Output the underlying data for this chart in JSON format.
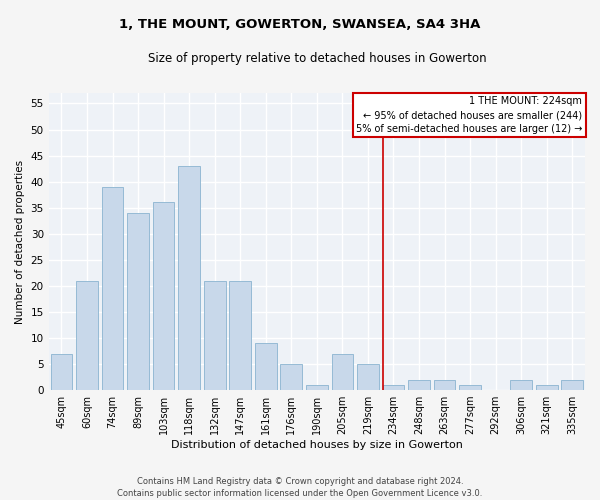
{
  "title": "1, THE MOUNT, GOWERTON, SWANSEA, SA4 3HA",
  "subtitle": "Size of property relative to detached houses in Gowerton",
  "xlabel": "Distribution of detached houses by size in Gowerton",
  "ylabel": "Number of detached properties",
  "footer_line1": "Contains HM Land Registry data © Crown copyright and database right 2024.",
  "footer_line2": "Contains public sector information licensed under the Open Government Licence v3.0.",
  "categories": [
    "45sqm",
    "60sqm",
    "74sqm",
    "89sqm",
    "103sqm",
    "118sqm",
    "132sqm",
    "147sqm",
    "161sqm",
    "176sqm",
    "190sqm",
    "205sqm",
    "219sqm",
    "234sqm",
    "248sqm",
    "263sqm",
    "277sqm",
    "292sqm",
    "306sqm",
    "321sqm",
    "335sqm"
  ],
  "values": [
    7,
    21,
    39,
    34,
    36,
    43,
    21,
    21,
    9,
    5,
    1,
    7,
    5,
    1,
    2,
    2,
    1,
    0,
    2,
    1,
    2
  ],
  "bar_color": "#c8d8ea",
  "bar_edgecolor": "#8ab4d0",
  "background_color": "#eef2f7",
  "grid_color": "#ffffff",
  "marker_index": 12.6,
  "marker_color": "#cc0000",
  "annotation_text_line1": "1 THE MOUNT: 224sqm",
  "annotation_text_line2": "← 95% of detached houses are smaller (244)",
  "annotation_text_line3": "5% of semi-detached houses are larger (12) →",
  "annotation_box_color": "#cc0000",
  "ylim": [
    0,
    57
  ],
  "yticks": [
    0,
    5,
    10,
    15,
    20,
    25,
    30,
    35,
    40,
    45,
    50,
    55
  ]
}
